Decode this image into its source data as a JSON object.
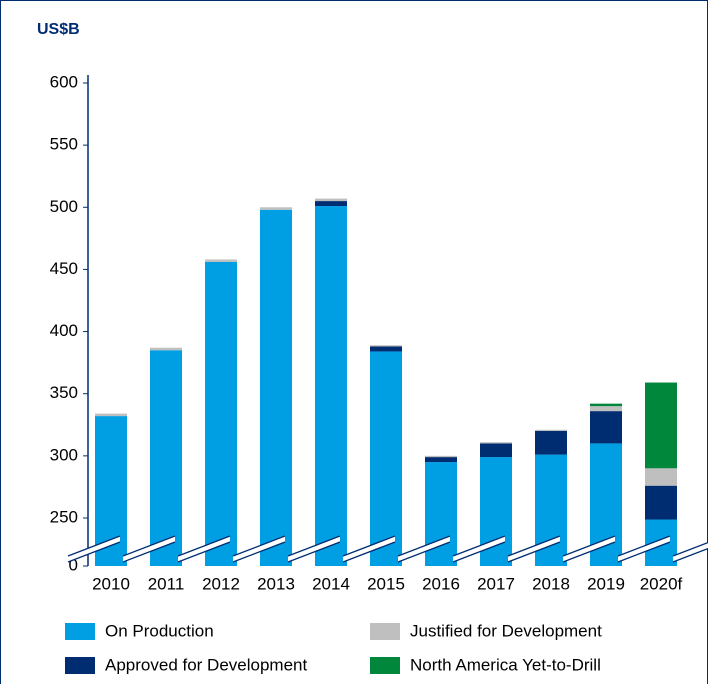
{
  "chart_data": {
    "type": "stacked_bar",
    "y_label": "US$B",
    "categories": [
      "2010",
      "2011",
      "2012",
      "2013",
      "2014",
      "2015",
      "2016",
      "2017",
      "2018",
      "2019",
      "2020f"
    ],
    "series": [
      {
        "name": "On Production",
        "color": "#009fe3",
        "values": [
          332,
          385,
          456,
          498,
          501,
          384,
          295,
          299,
          301,
          310,
          242
        ]
      },
      {
        "name": "Approved for Development",
        "color": "#002d72",
        "values": [
          0,
          0,
          0,
          0,
          4,
          4,
          4,
          11,
          19,
          26,
          34
        ]
      },
      {
        "name": "Justified for Development",
        "color": "#bfbfbf",
        "values": [
          2,
          2,
          2,
          2,
          2,
          1,
          1,
          1,
          1,
          4,
          14
        ]
      },
      {
        "name": "North America Yet-to-Drill",
        "color": "#00873c",
        "values": [
          0,
          0,
          0,
          0,
          0,
          0,
          0,
          0,
          0,
          2,
          69
        ]
      }
    ],
    "ylim": [
      0,
      600
    ],
    "yticks": [
      0,
      250,
      300,
      350,
      400,
      450,
      500,
      550,
      600
    ],
    "broken_axis": true
  }
}
